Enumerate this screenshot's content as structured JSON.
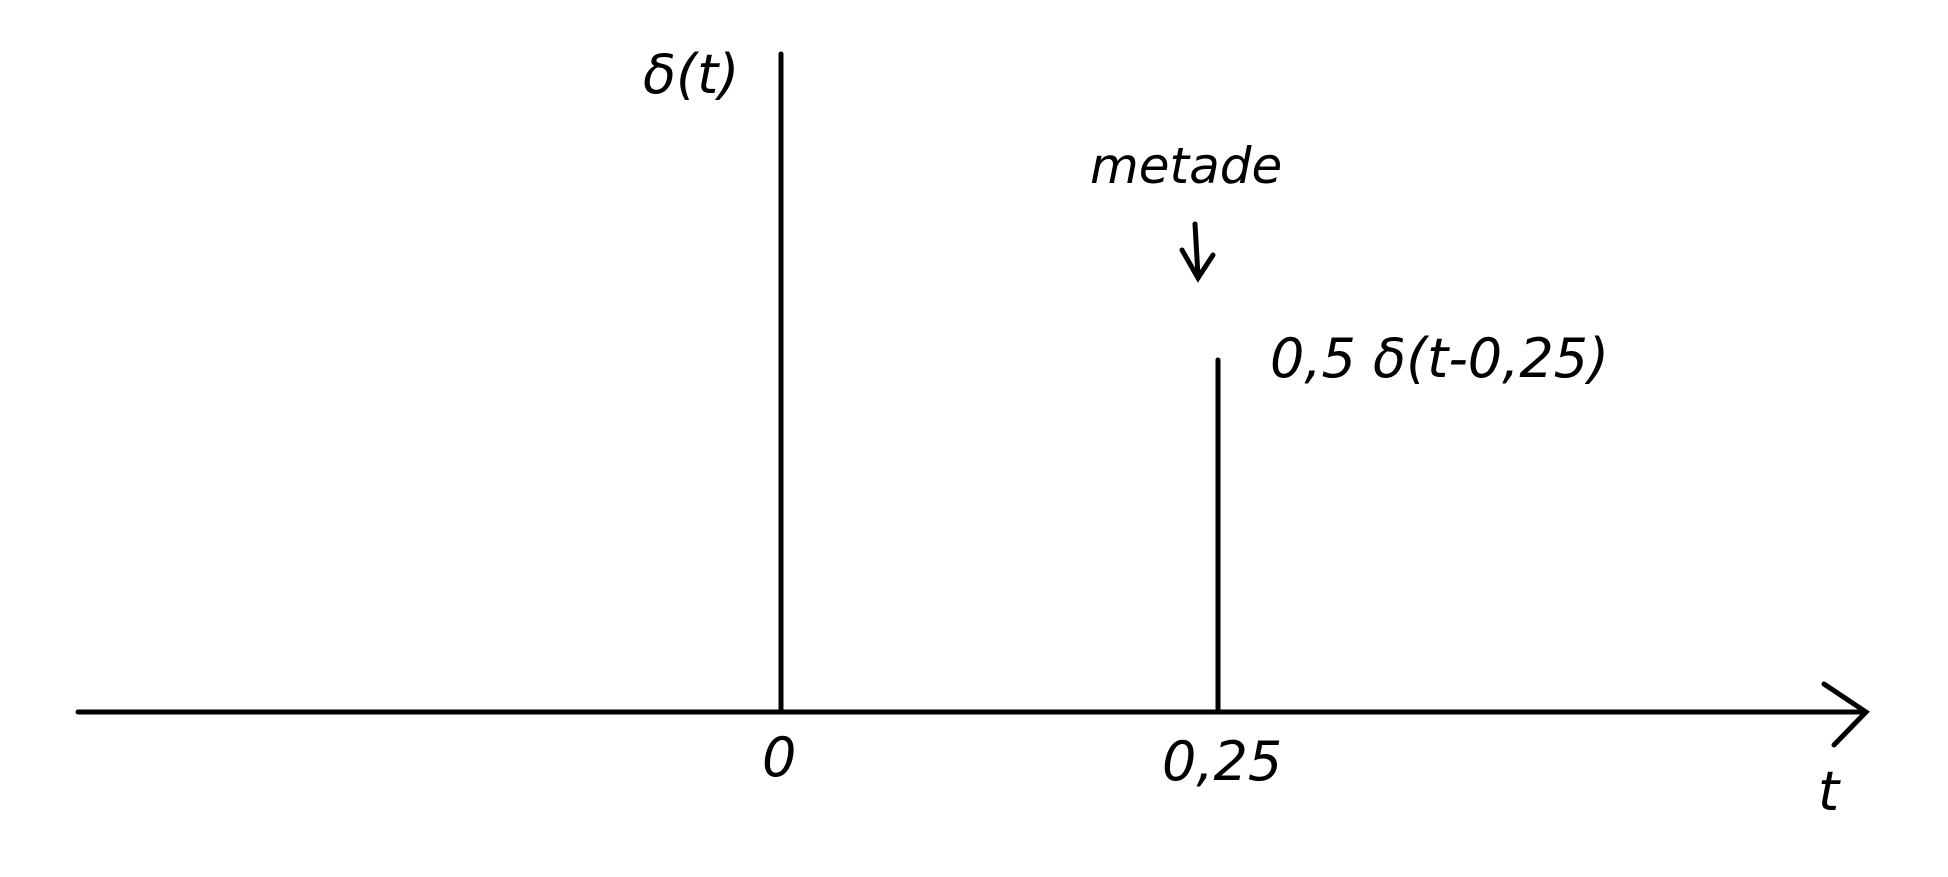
{
  "diagram": {
    "impulse_main_label": "δ(t)",
    "impulse_scaled_label": "0,5 δ(t-0,25)",
    "annotation": "metade",
    "axis_label": "t",
    "tick_zero": "0",
    "tick_quarter": "0,25"
  },
  "colors": {
    "ink": "#000000",
    "background": "#ffffff"
  }
}
